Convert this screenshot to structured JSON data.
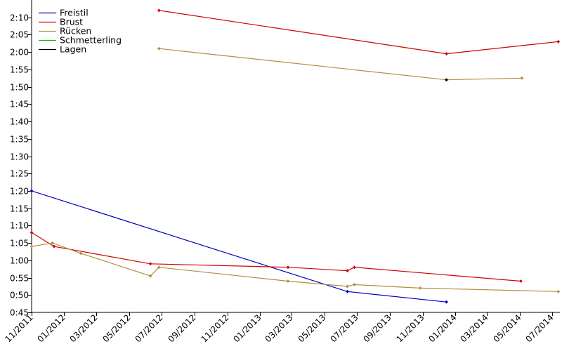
{
  "chart_data": {
    "type": "line",
    "title": "",
    "xlabel": "",
    "ylabel": "",
    "x_range": [
      "2011-11-01",
      "2014-07-15"
    ],
    "ylim": [
      "0:45",
      "2:15"
    ],
    "y_ticks": [
      "0:45",
      "0:50",
      "0:55",
      "1:00",
      "1:05",
      "1:10",
      "1:15",
      "1:20",
      "1:25",
      "1:30",
      "1:35",
      "1:40",
      "1:45",
      "1:50",
      "1:55",
      "2:00",
      "2:05",
      "2:10"
    ],
    "x_ticks": [
      {
        "date": "2011-11-01",
        "label": "11/2011"
      },
      {
        "date": "2012-01-01",
        "label": "01/2012"
      },
      {
        "date": "2012-03-01",
        "label": "03/2012"
      },
      {
        "date": "2012-05-01",
        "label": "05/2012"
      },
      {
        "date": "2012-07-01",
        "label": "07/2012"
      },
      {
        "date": "2012-09-01",
        "label": "09/2012"
      },
      {
        "date": "2012-11-01",
        "label": "11/2012"
      },
      {
        "date": "2013-01-01",
        "label": "01/2013"
      },
      {
        "date": "2013-03-01",
        "label": "03/2013"
      },
      {
        "date": "2013-05-01",
        "label": "05/2013"
      },
      {
        "date": "2013-07-01",
        "label": "07/2013"
      },
      {
        "date": "2013-09-01",
        "label": "09/2013"
      },
      {
        "date": "2013-11-01",
        "label": "11/2013"
      },
      {
        "date": "2014-01-01",
        "label": "01/2014"
      },
      {
        "date": "2014-03-01",
        "label": "03/2014"
      },
      {
        "date": "2014-05-01",
        "label": "05/2014"
      },
      {
        "date": "2014-07-01",
        "label": "07/2014"
      }
    ],
    "legend_position": "top-left",
    "grid": false,
    "series": [
      {
        "name": "Freistil",
        "color": "#0000c0",
        "points": [
          {
            "x": "2011-11-01",
            "y": "1:20"
          },
          {
            "x": "2013-06-13",
            "y": "0:51"
          },
          {
            "x": "2013-12-15",
            "y": "0:48"
          }
        ]
      },
      {
        "name": "Brust",
        "color": "#d00000",
        "points": [
          {
            "x": "2011-11-01",
            "y": "1:08"
          },
          {
            "x": "2011-12-13",
            "y": "1:04"
          },
          {
            "x": "2012-06-10",
            "y": "0:59"
          },
          {
            "x": "2013-02-22",
            "y": "0:58"
          },
          {
            "x": "2013-06-13",
            "y": "0:57"
          },
          {
            "x": "2013-06-26",
            "y": "0:58"
          },
          {
            "x": "2014-05-03",
            "y": "0:54"
          }
        ]
      },
      {
        "name": "Brust",
        "color": "#d00000",
        "points": [
          {
            "x": "2012-06-26",
            "y": "2:12"
          },
          {
            "x": "2013-12-15",
            "y": "1:59.5"
          },
          {
            "x": "2014-07-12",
            "y": "2:03"
          }
        ]
      },
      {
        "name": "Rücken",
        "color": "#b09040",
        "points": [
          {
            "x": "2011-11-01",
            "y": "1:04"
          },
          {
            "x": "2011-12-10",
            "y": "1:05"
          },
          {
            "x": "2012-02-01",
            "y": "1:02"
          },
          {
            "x": "2012-06-10",
            "y": "0:55.5"
          },
          {
            "x": "2012-06-26",
            "y": "0:58"
          },
          {
            "x": "2013-02-22",
            "y": "0:54"
          },
          {
            "x": "2013-06-13",
            "y": "0:52.5"
          },
          {
            "x": "2013-06-26",
            "y": "0:53"
          },
          {
            "x": "2013-10-27",
            "y": "0:52"
          },
          {
            "x": "2014-07-12",
            "y": "0:51"
          }
        ]
      },
      {
        "name": "Rücken",
        "color": "#b09040",
        "points": [
          {
            "x": "2012-06-26",
            "y": "2:01"
          },
          {
            "x": "2013-12-15",
            "y": "1:52"
          },
          {
            "x": "2014-05-05",
            "y": "1:52.5"
          }
        ]
      },
      {
        "name": "Schmetterling",
        "color": "#00c000",
        "points": []
      },
      {
        "name": "Lagen",
        "color": "#000000",
        "points": [
          {
            "x": "2013-12-15",
            "y": "1:52"
          }
        ]
      }
    ],
    "legend": [
      {
        "name": "Freistil",
        "color": "#0000c0"
      },
      {
        "name": "Brust",
        "color": "#d00000"
      },
      {
        "name": "Rücken",
        "color": "#b09040"
      },
      {
        "name": "Schmetterling",
        "color": "#00c000"
      },
      {
        "name": "Lagen",
        "color": "#000000"
      }
    ]
  }
}
